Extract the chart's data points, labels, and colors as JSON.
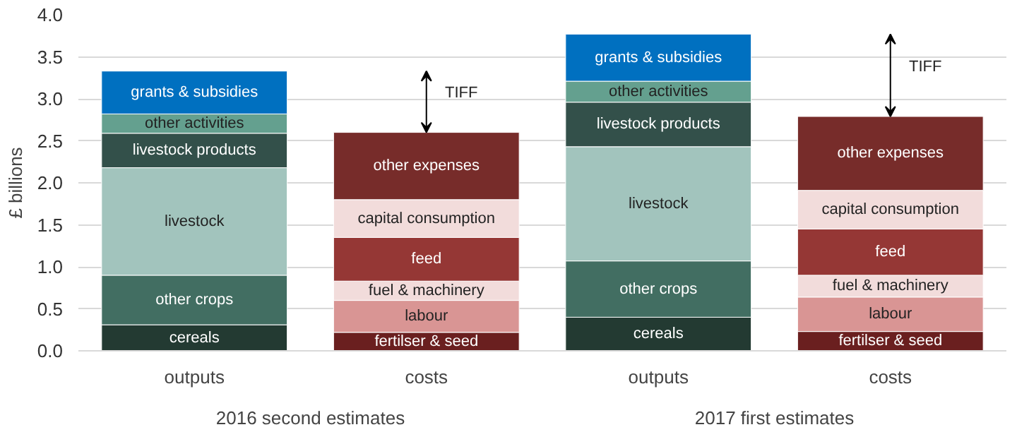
{
  "chart_data": {
    "type": "bar",
    "stacked": true,
    "ylabel": "£ billions",
    "categories": [
      "outputs",
      "costs",
      "outputs",
      "costs"
    ],
    "series": [
      {
        "name": "cereals",
        "color": "#233a32",
        "values": [
          0.31,
          null,
          0.4,
          null
        ]
      },
      {
        "name": "other crops",
        "color": "#426e62",
        "values": [
          0.59,
          null,
          0.67,
          null
        ]
      },
      {
        "name": "livestock",
        "color": "#a2c4bd",
        "values": [
          1.28,
          null,
          1.36,
          null
        ]
      },
      {
        "name": "livestock products",
        "color": "#33504a",
        "values": [
          0.41,
          null,
          0.53,
          null
        ]
      },
      {
        "name": "other activities",
        "color": "#64a08f",
        "values": [
          0.23,
          null,
          0.25,
          null
        ]
      },
      {
        "name": "grants & subsidies",
        "color": "#0070c0",
        "values": [
          0.51,
          null,
          0.56,
          null
        ]
      },
      {
        "name": "fertilser & seed",
        "color": "#6a1f1f",
        "values": [
          null,
          0.22,
          null,
          0.23
        ]
      },
      {
        "name": "labour",
        "color": "#d99594",
        "values": [
          null,
          0.38,
          null,
          0.41
        ]
      },
      {
        "name": "fuel & machinery",
        "color": "#f2dcdb",
        "values": [
          null,
          0.23,
          null,
          0.26
        ]
      },
      {
        "name": "feed",
        "color": "#953735",
        "values": [
          null,
          0.52,
          null,
          0.55
        ]
      },
      {
        "name": "capital consumption",
        "color": "#f2dcdb",
        "values": [
          null,
          0.45,
          null,
          0.46
        ]
      },
      {
        "name": "other expenses",
        "color": "#772c2a",
        "values": [
          null,
          0.8,
          null,
          0.88
        ]
      }
    ],
    "annotations": [
      "2016 second estimates",
      "2017 first estimates",
      "TIFF",
      "TIFF"
    ],
    "ylim": [
      0,
      4
    ],
    "yticks": [
      {
        "value": 0,
        "label": "0.0"
      },
      {
        "value": 0.5,
        "label": "0.5"
      },
      {
        "value": 1,
        "label": "1.0"
      },
      {
        "value": 1.5,
        "label": "1.5"
      },
      {
        "value": 2,
        "label": "2.0"
      },
      {
        "value": 2.5,
        "label": "2.5"
      },
      {
        "value": 3,
        "label": "3.0"
      },
      {
        "value": 3.5,
        "label": "3.5"
      },
      {
        "value": 4,
        "label": "4.0"
      }
    ],
    "grid": "y"
  }
}
